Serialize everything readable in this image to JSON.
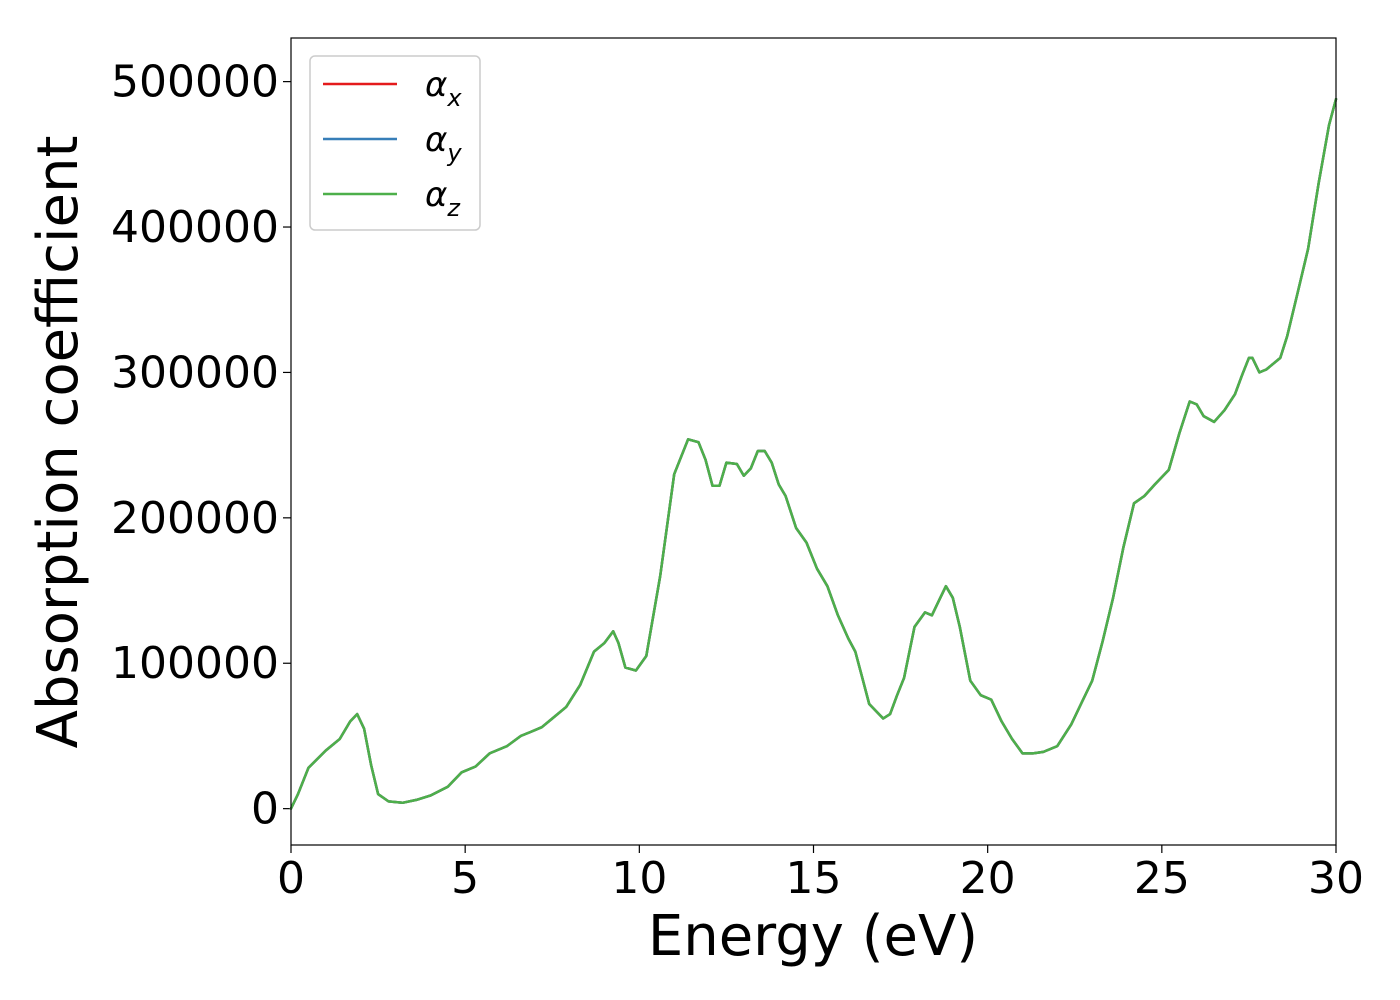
{
  "chart_data": {
    "type": "line",
    "title": "",
    "xlabel": "Energy (eV)",
    "ylabel": "Absorption coefficient",
    "xlim": [
      0,
      30
    ],
    "ylim": [
      -25000,
      530000
    ],
    "xticks": [
      0,
      5,
      10,
      15,
      20,
      25,
      30
    ],
    "yticks": [
      0,
      100000,
      200000,
      300000,
      400000,
      500000
    ],
    "grid": false,
    "legend_position": "top-left",
    "series": [
      {
        "name": "α",
        "subscript": "x",
        "color": "#e41a1c",
        "x": [
          0,
          0.2,
          0.5,
          1.0,
          1.4,
          1.7,
          1.9,
          2.1,
          2.3,
          2.5,
          2.8,
          3.2,
          3.6,
          4.0,
          4.5,
          4.9,
          5.3,
          5.7,
          6.2,
          6.6,
          6.9,
          7.2,
          7.5,
          7.9,
          8.3,
          8.7,
          9.0,
          9.25,
          9.4,
          9.6,
          9.9,
          10.2,
          10.6,
          11.0,
          11.4,
          11.7,
          11.9,
          12.1,
          12.3,
          12.5,
          12.8,
          13.0,
          13.2,
          13.4,
          13.6,
          13.8,
          14.0,
          14.2,
          14.5,
          14.8,
          15.1,
          15.4,
          15.7,
          16.0,
          16.2,
          16.4,
          16.6,
          16.8,
          17.0,
          17.2,
          17.4,
          17.6,
          17.9,
          18.2,
          18.4,
          18.6,
          18.8,
          19.0,
          19.2,
          19.5,
          19.8,
          20.1,
          20.4,
          20.7,
          21.0,
          21.3,
          21.6,
          22.0,
          22.4,
          22.7,
          23.0,
          23.3,
          23.6,
          23.9,
          24.2,
          24.5,
          24.8,
          25.2,
          25.5,
          25.8,
          26.0,
          26.2,
          26.5,
          26.8,
          27.1,
          27.3,
          27.5,
          27.6,
          27.8,
          28.0,
          28.2,
          28.4,
          28.6,
          28.9,
          29.2,
          29.5,
          29.8,
          30.0
        ],
        "values": [
          0,
          10000,
          28000,
          40000,
          48000,
          60000,
          65000,
          55000,
          30000,
          10000,
          5000,
          4000,
          6000,
          9000,
          15000,
          25000,
          29000,
          38000,
          43000,
          50000,
          53000,
          56000,
          62000,
          70000,
          85000,
          108000,
          114000,
          122000,
          114000,
          97000,
          95000,
          105000,
          160000,
          230000,
          254000,
          252000,
          240000,
          222000,
          222000,
          238000,
          237000,
          229000,
          234000,
          246000,
          246000,
          238000,
          223000,
          215000,
          193000,
          183000,
          165000,
          153000,
          133000,
          117000,
          108000,
          90000,
          72000,
          67000,
          62000,
          65000,
          78000,
          90000,
          125000,
          135000,
          133000,
          143000,
          153000,
          145000,
          125000,
          88000,
          78000,
          75000,
          60000,
          48000,
          38000,
          38000,
          39000,
          43000,
          58000,
          73000,
          88000,
          115000,
          145000,
          180000,
          210000,
          215000,
          223000,
          233000,
          258000,
          280000,
          278000,
          270000,
          266000,
          274000,
          285000,
          298000,
          310000,
          310000,
          300000,
          302000,
          306000,
          310000,
          325000,
          355000,
          385000,
          430000,
          470000,
          488000
        ]
      },
      {
        "name": "α",
        "subscript": "y",
        "color": "#377eb8",
        "x": [
          0,
          0.2,
          0.5,
          1.0,
          1.4,
          1.7,
          1.9,
          2.1,
          2.3,
          2.5,
          2.8,
          3.2,
          3.6,
          4.0,
          4.5,
          4.9,
          5.3,
          5.7,
          6.2,
          6.6,
          6.9,
          7.2,
          7.5,
          7.9,
          8.3,
          8.7,
          9.0,
          9.25,
          9.4,
          9.6,
          9.9,
          10.2,
          10.6,
          11.0,
          11.4,
          11.7,
          11.9,
          12.1,
          12.3,
          12.5,
          12.8,
          13.0,
          13.2,
          13.4,
          13.6,
          13.8,
          14.0,
          14.2,
          14.5,
          14.8,
          15.1,
          15.4,
          15.7,
          16.0,
          16.2,
          16.4,
          16.6,
          16.8,
          17.0,
          17.2,
          17.4,
          17.6,
          17.9,
          18.2,
          18.4,
          18.6,
          18.8,
          19.0,
          19.2,
          19.5,
          19.8,
          20.1,
          20.4,
          20.7,
          21.0,
          21.3,
          21.6,
          22.0,
          22.4,
          22.7,
          23.0,
          23.3,
          23.6,
          23.9,
          24.2,
          24.5,
          24.8,
          25.2,
          25.5,
          25.8,
          26.0,
          26.2,
          26.5,
          26.8,
          27.1,
          27.3,
          27.5,
          27.6,
          27.8,
          28.0,
          28.2,
          28.4,
          28.6,
          28.9,
          29.2,
          29.5,
          29.8,
          30.0
        ],
        "values": [
          0,
          10000,
          28000,
          40000,
          48000,
          60000,
          65000,
          55000,
          30000,
          10000,
          5000,
          4000,
          6000,
          9000,
          15000,
          25000,
          29000,
          38000,
          43000,
          50000,
          53000,
          56000,
          62000,
          70000,
          85000,
          108000,
          114000,
          122000,
          114000,
          97000,
          95000,
          105000,
          160000,
          230000,
          254000,
          252000,
          240000,
          222000,
          222000,
          238000,
          237000,
          229000,
          234000,
          246000,
          246000,
          238000,
          223000,
          215000,
          193000,
          183000,
          165000,
          153000,
          133000,
          117000,
          108000,
          90000,
          72000,
          67000,
          62000,
          65000,
          78000,
          90000,
          125000,
          135000,
          133000,
          143000,
          153000,
          145000,
          125000,
          88000,
          78000,
          75000,
          60000,
          48000,
          38000,
          38000,
          39000,
          43000,
          58000,
          73000,
          88000,
          115000,
          145000,
          180000,
          210000,
          215000,
          223000,
          233000,
          258000,
          280000,
          278000,
          270000,
          266000,
          274000,
          285000,
          298000,
          310000,
          310000,
          300000,
          302000,
          306000,
          310000,
          325000,
          355000,
          385000,
          430000,
          470000,
          488000
        ]
      },
      {
        "name": "α",
        "subscript": "z",
        "color": "#4daf4a",
        "x": [
          0,
          0.2,
          0.5,
          1.0,
          1.4,
          1.7,
          1.9,
          2.1,
          2.3,
          2.5,
          2.8,
          3.2,
          3.6,
          4.0,
          4.5,
          4.9,
          5.3,
          5.7,
          6.2,
          6.6,
          6.9,
          7.2,
          7.5,
          7.9,
          8.3,
          8.7,
          9.0,
          9.25,
          9.4,
          9.6,
          9.9,
          10.2,
          10.6,
          11.0,
          11.4,
          11.7,
          11.9,
          12.1,
          12.3,
          12.5,
          12.8,
          13.0,
          13.2,
          13.4,
          13.6,
          13.8,
          14.0,
          14.2,
          14.5,
          14.8,
          15.1,
          15.4,
          15.7,
          16.0,
          16.2,
          16.4,
          16.6,
          16.8,
          17.0,
          17.2,
          17.4,
          17.6,
          17.9,
          18.2,
          18.4,
          18.6,
          18.8,
          19.0,
          19.2,
          19.5,
          19.8,
          20.1,
          20.4,
          20.7,
          21.0,
          21.3,
          21.6,
          22.0,
          22.4,
          22.7,
          23.0,
          23.3,
          23.6,
          23.9,
          24.2,
          24.5,
          24.8,
          25.2,
          25.5,
          25.8,
          26.0,
          26.2,
          26.5,
          26.8,
          27.1,
          27.3,
          27.5,
          27.6,
          27.8,
          28.0,
          28.2,
          28.4,
          28.6,
          28.9,
          29.2,
          29.5,
          29.8,
          30.0
        ],
        "values": [
          0,
          10000,
          28000,
          40000,
          48000,
          60000,
          65000,
          55000,
          30000,
          10000,
          5000,
          4000,
          6000,
          9000,
          15000,
          25000,
          29000,
          38000,
          43000,
          50000,
          53000,
          56000,
          62000,
          70000,
          85000,
          108000,
          114000,
          122000,
          114000,
          97000,
          95000,
          105000,
          160000,
          230000,
          254000,
          252000,
          240000,
          222000,
          222000,
          238000,
          237000,
          229000,
          234000,
          246000,
          246000,
          238000,
          223000,
          215000,
          193000,
          183000,
          165000,
          153000,
          133000,
          117000,
          108000,
          90000,
          72000,
          67000,
          62000,
          65000,
          78000,
          90000,
          125000,
          135000,
          133000,
          143000,
          153000,
          145000,
          125000,
          88000,
          78000,
          75000,
          60000,
          48000,
          38000,
          38000,
          39000,
          43000,
          58000,
          73000,
          88000,
          115000,
          145000,
          180000,
          210000,
          215000,
          223000,
          233000,
          258000,
          280000,
          278000,
          270000,
          266000,
          274000,
          285000,
          298000,
          310000,
          310000,
          300000,
          302000,
          306000,
          310000,
          325000,
          355000,
          385000,
          430000,
          470000,
          488000
        ]
      }
    ]
  }
}
